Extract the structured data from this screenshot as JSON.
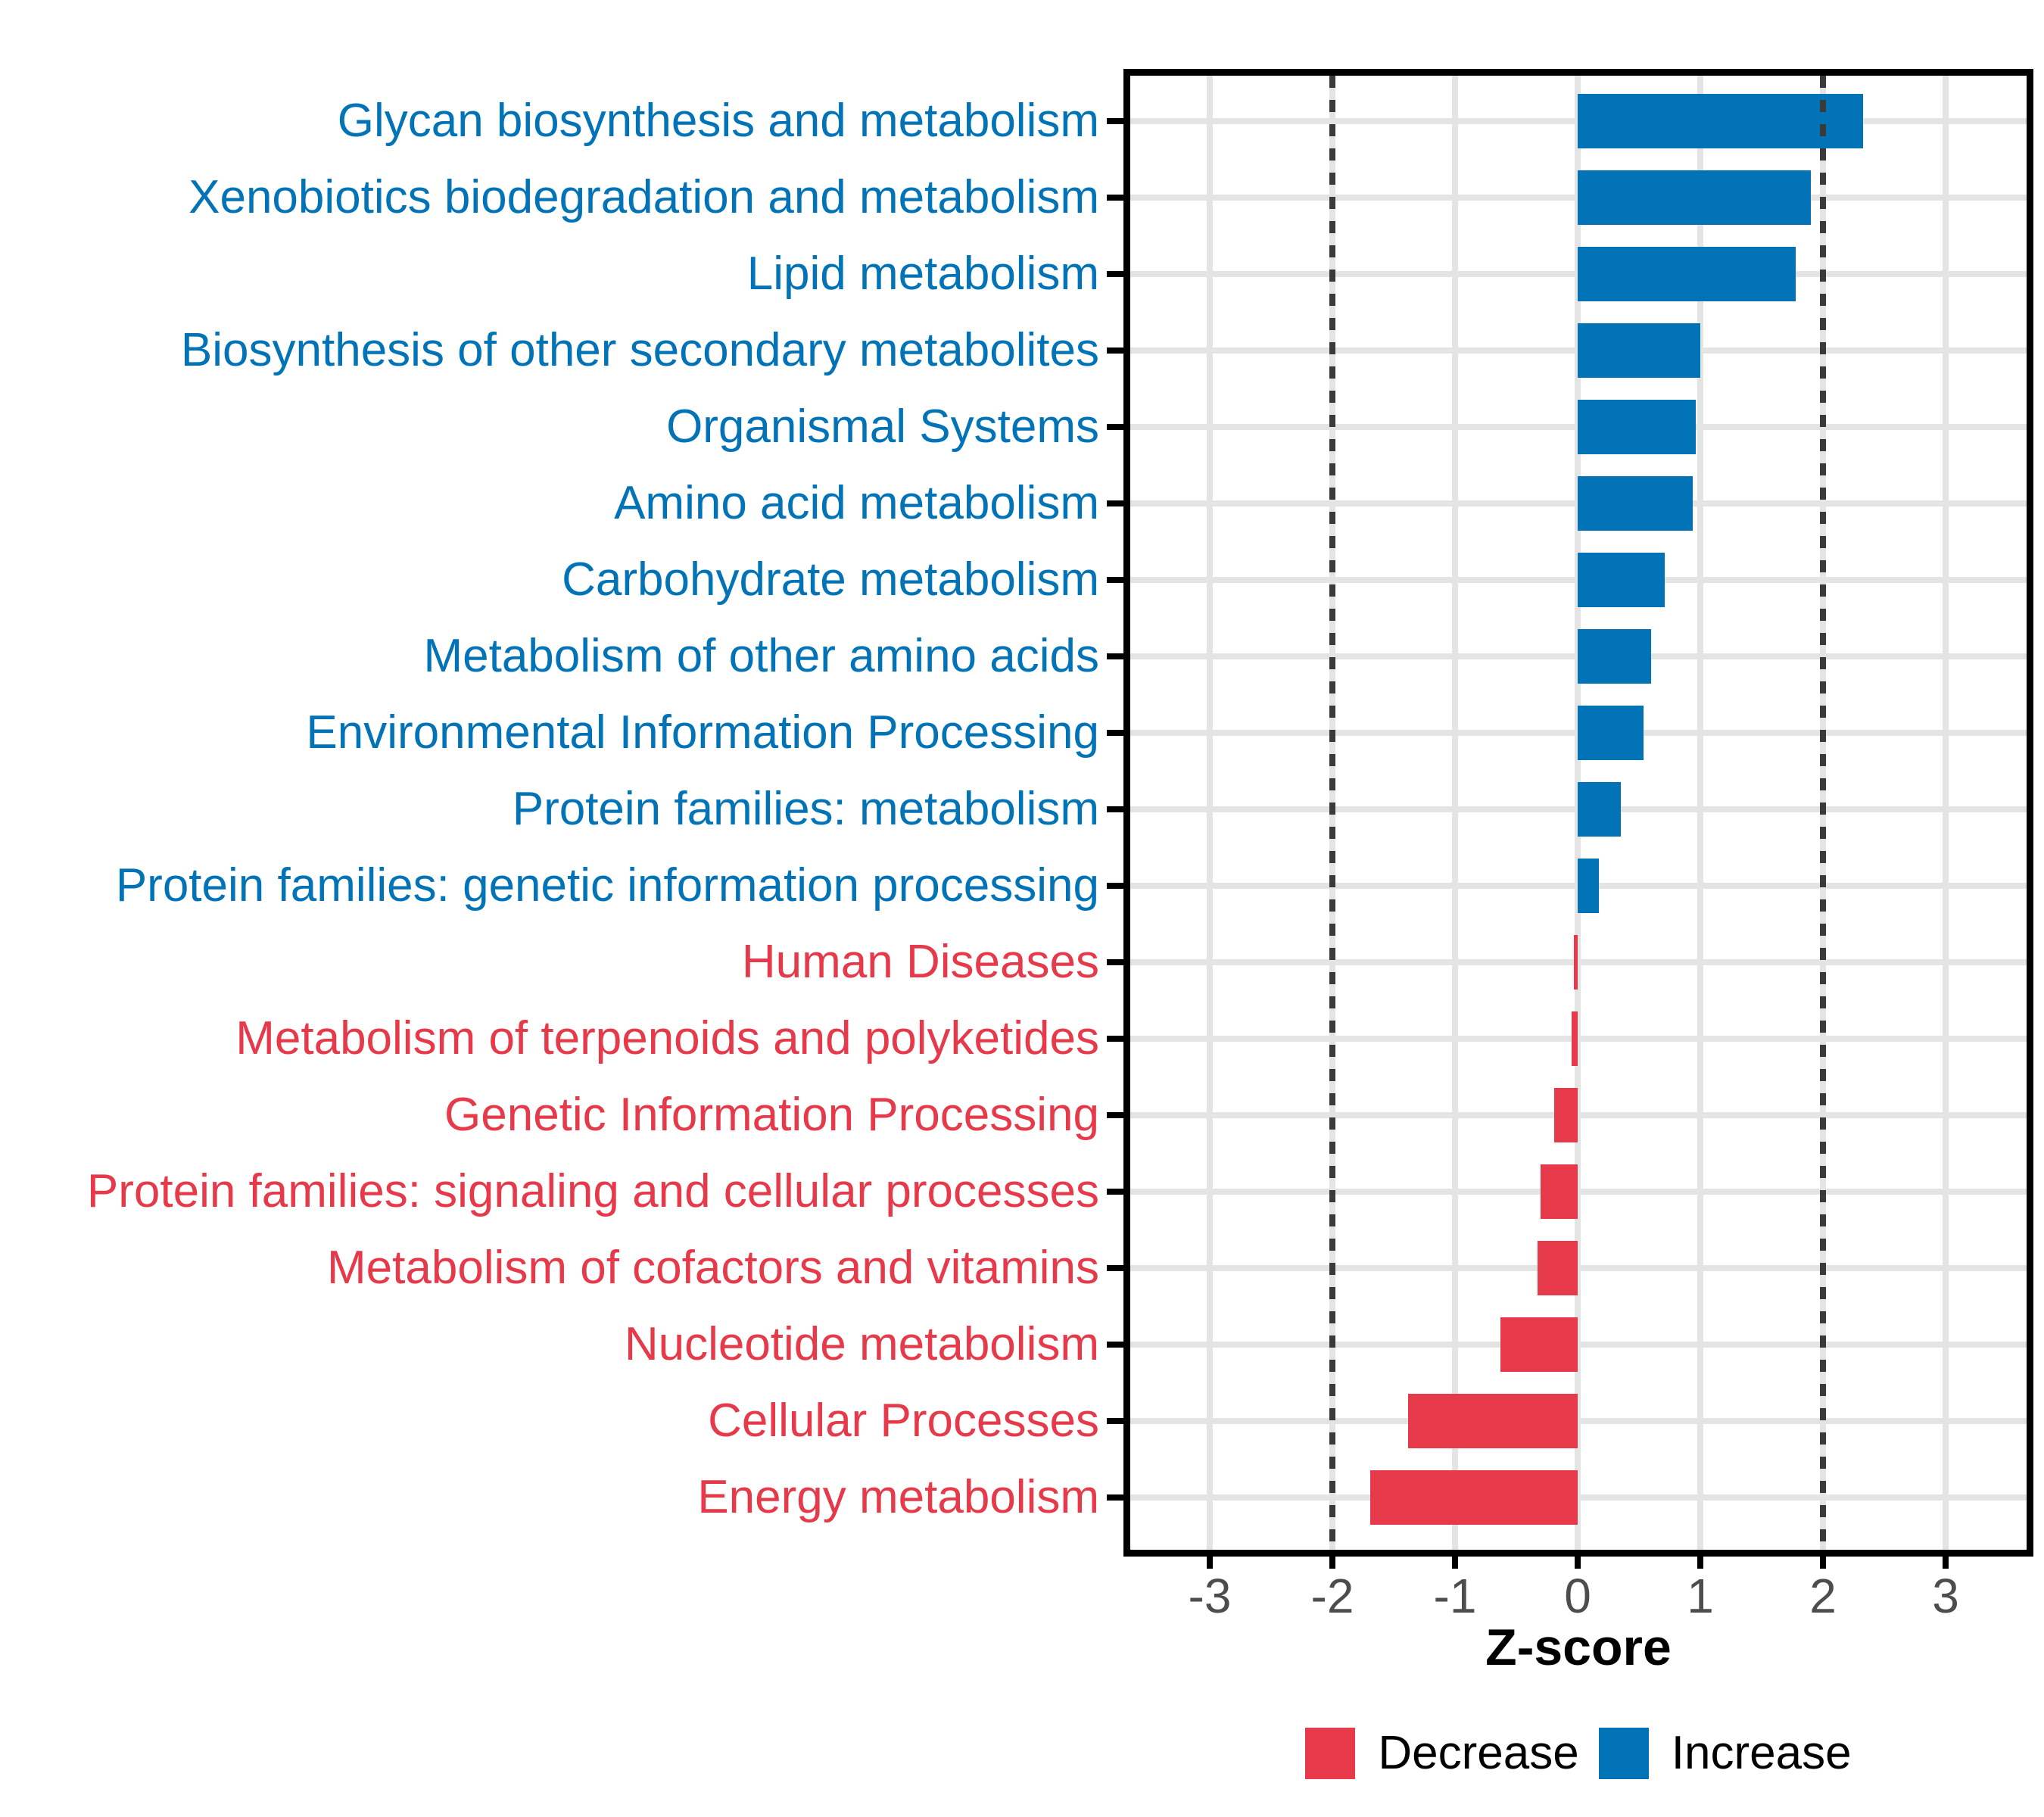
{
  "chart_data": {
    "type": "bar",
    "orientation": "horizontal",
    "title": "",
    "xlabel": "Z-score",
    "ylabel": "",
    "grid": true,
    "legend_position": "bottom-center",
    "x_range": [
      -3.65,
      3.66
    ],
    "x_ticks": [
      -3,
      -2,
      -1,
      0,
      1,
      2,
      3
    ],
    "reference_lines_dotted": [
      -2,
      2
    ],
    "categories": [
      "Glycan biosynthesis and metabolism",
      "Xenobiotics biodegradation and metabolism",
      "Lipid metabolism",
      "Biosynthesis of other secondary metabolites",
      "Organismal Systems",
      "Amino acid metabolism",
      "Carbohydrate metabolism",
      "Metabolism of other amino acids",
      "Environmental Information Processing",
      "Protein families: metabolism",
      "Protein families: genetic information processing",
      "Human Diseases",
      "Metabolism of terpenoids and polyketides",
      "Genetic Information Processing",
      "Protein families: signaling and cellular processes",
      "Metabolism of cofactors and vitamins",
      "Nucleotide metabolism",
      "Cellular Processes",
      "Energy metabolism"
    ],
    "values": [
      2.33,
      1.9,
      1.78,
      1.0,
      0.96,
      0.94,
      0.71,
      0.6,
      0.54,
      0.35,
      0.17,
      -0.03,
      -0.05,
      -0.19,
      -0.3,
      -0.33,
      -0.63,
      -1.38,
      -1.69
    ],
    "directions": [
      "Increase",
      "Increase",
      "Increase",
      "Increase",
      "Increase",
      "Increase",
      "Increase",
      "Increase",
      "Increase",
      "Increase",
      "Increase",
      "Decrease",
      "Decrease",
      "Decrease",
      "Decrease",
      "Decrease",
      "Decrease",
      "Decrease",
      "Decrease"
    ],
    "colors": {
      "increase": "#0273B6",
      "decrease": "#E6394A",
      "grid": "#E4E4E4",
      "reference_line": "#3A3A3A",
      "axis_text": "#4D4D4D",
      "panel_border": "#000000"
    }
  },
  "axis": {
    "title": "Z-score",
    "tick_labels": [
      "-3",
      "-2",
      "-1",
      "0",
      "1",
      "2",
      "3"
    ]
  },
  "legend": {
    "items": [
      {
        "label": "Decrease",
        "color": "#E6394A"
      },
      {
        "label": "Increase",
        "color": "#0273B6"
      }
    ]
  }
}
